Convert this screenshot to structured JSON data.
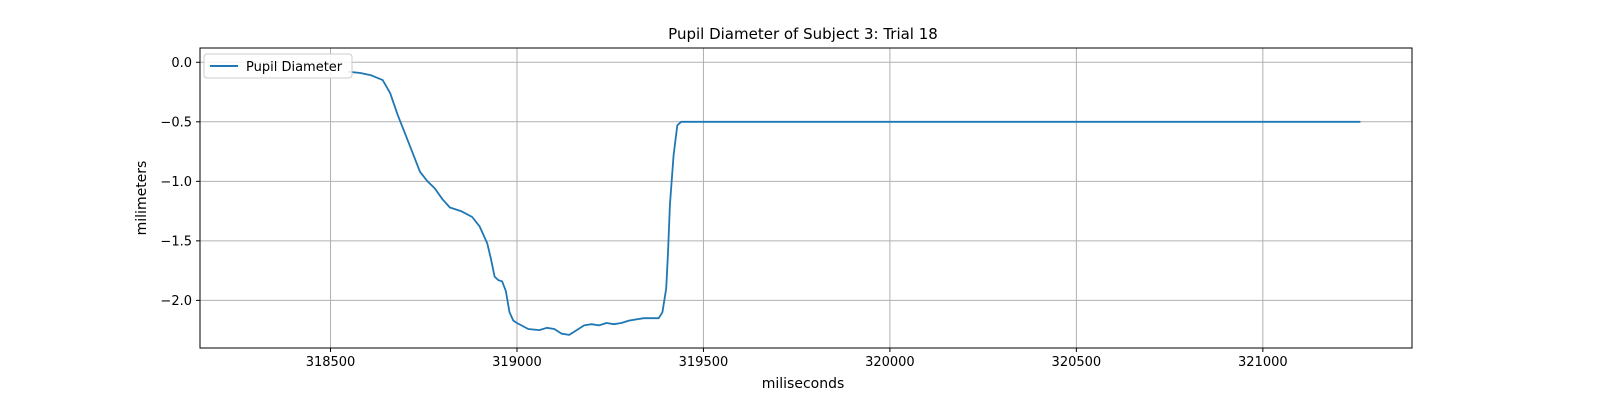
{
  "chart_data": {
    "type": "line",
    "title": "Pupil Diameter of Subject 3: Trial 18",
    "xlabel": "miliseconds",
    "ylabel": "milimeters",
    "xlim": [
      318150,
      321400
    ],
    "ylim": [
      -2.4,
      0.12
    ],
    "x_ticks": [
      318500,
      319000,
      319500,
      320000,
      320500,
      321000
    ],
    "x_tick_labels": [
      "318500",
      "319000",
      "319500",
      "320000",
      "320500",
      "321000"
    ],
    "y_ticks": [
      0.0,
      -0.5,
      -1.0,
      -1.5,
      -2.0
    ],
    "y_tick_labels": [
      "0.0",
      "−0.5",
      "−1.0",
      "−1.5",
      "−2.0"
    ],
    "grid": true,
    "legend": {
      "position": "top-left",
      "entries": [
        "Pupil Diameter"
      ]
    },
    "colors": {
      "series": "#1f77b4",
      "grid": "#b0b0b0"
    },
    "series": [
      {
        "name": "Pupil Diameter",
        "x": [
          318550,
          318580,
          318610,
          318640,
          318660,
          318680,
          318700,
          318720,
          318740,
          318760,
          318780,
          318800,
          318820,
          318850,
          318880,
          318900,
          318920,
          318930,
          318940,
          318950,
          318960,
          318970,
          318980,
          318990,
          319000,
          319030,
          319060,
          319080,
          319100,
          319120,
          319140,
          319160,
          319180,
          319200,
          319220,
          319240,
          319260,
          319280,
          319300,
          319320,
          319340,
          319360,
          319380,
          319390,
          319400,
          319405,
          319410,
          319420,
          319430,
          319440,
          319460,
          319500,
          319600,
          319800,
          320000,
          320500,
          321000,
          321260
        ],
        "y": [
          -0.08,
          -0.09,
          -0.11,
          -0.15,
          -0.26,
          -0.44,
          -0.6,
          -0.76,
          -0.92,
          -1.0,
          -1.06,
          -1.15,
          -1.22,
          -1.25,
          -1.3,
          -1.38,
          -1.52,
          -1.65,
          -1.8,
          -1.83,
          -1.84,
          -1.92,
          -2.1,
          -2.17,
          -2.19,
          -2.24,
          -2.25,
          -2.23,
          -2.24,
          -2.28,
          -2.29,
          -2.25,
          -2.21,
          -2.2,
          -2.21,
          -2.19,
          -2.2,
          -2.19,
          -2.17,
          -2.16,
          -2.15,
          -2.15,
          -2.15,
          -2.1,
          -1.9,
          -1.6,
          -1.2,
          -0.78,
          -0.53,
          -0.5,
          -0.5,
          -0.5,
          -0.5,
          -0.5,
          -0.5,
          -0.5,
          -0.5,
          -0.5
        ]
      }
    ]
  }
}
